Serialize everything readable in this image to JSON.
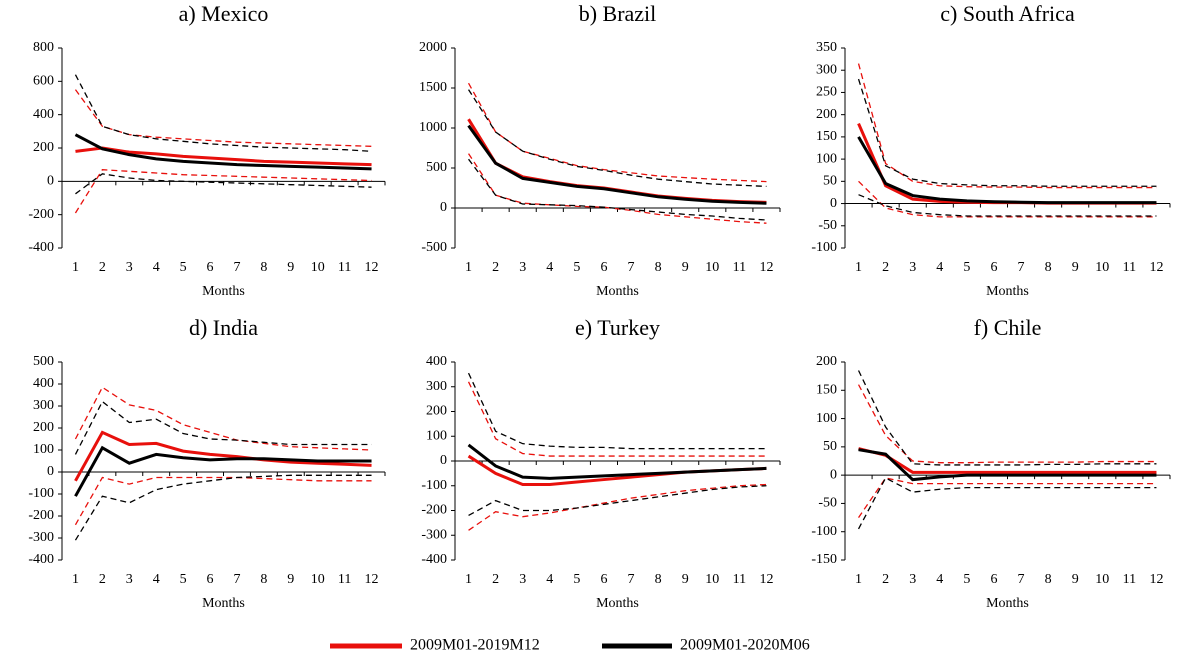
{
  "legend": [
    {
      "name": "2009M01-2019M12",
      "color": "#e8100c"
    },
    {
      "name": "2009M01-2020M06",
      "color": "#000000"
    }
  ],
  "chart_data": [
    {
      "type": "line",
      "title": "a) Mexico",
      "xlabel": "Months",
      "categories": [
        "1",
        "2",
        "3",
        "4",
        "5",
        "6",
        "7",
        "8",
        "9",
        "10",
        "11",
        "12"
      ],
      "ylim": [
        -400,
        800
      ],
      "yticks": [
        -400,
        -200,
        0,
        200,
        400,
        600,
        800
      ],
      "series": [
        {
          "values": [
            180,
            200,
            175,
            165,
            150,
            140,
            130,
            120,
            115,
            110,
            105,
            100
          ],
          "upper": [
            550,
            330,
            280,
            265,
            255,
            245,
            235,
            230,
            225,
            220,
            215,
            210
          ],
          "lower": [
            -190,
            70,
            60,
            50,
            40,
            35,
            30,
            25,
            20,
            15,
            10,
            5
          ]
        },
        {
          "values": [
            280,
            195,
            160,
            135,
            120,
            110,
            100,
            95,
            90,
            85,
            80,
            75
          ],
          "upper": [
            640,
            330,
            280,
            255,
            240,
            225,
            215,
            205,
            200,
            195,
            190,
            180
          ],
          "lower": [
            -75,
            45,
            20,
            5,
            0,
            -5,
            -10,
            -15,
            -20,
            -25,
            -30,
            -35
          ]
        }
      ]
    },
    {
      "type": "line",
      "title": "b) Brazil",
      "xlabel": "Months",
      "categories": [
        "1",
        "2",
        "3",
        "4",
        "5",
        "6",
        "7",
        "8",
        "9",
        "10",
        "11",
        "12"
      ],
      "ylim": [
        -500,
        2000
      ],
      "yticks": [
        -500,
        0,
        500,
        1000,
        1500,
        2000
      ],
      "series": [
        {
          "values": [
            1110,
            560,
            390,
            330,
            280,
            250,
            200,
            150,
            120,
            95,
            80,
            70
          ],
          "upper": [
            1560,
            950,
            710,
            620,
            530,
            480,
            440,
            400,
            380,
            360,
            345,
            330
          ],
          "lower": [
            680,
            160,
            60,
            40,
            20,
            10,
            -30,
            -80,
            -110,
            -140,
            -170,
            -190
          ]
        },
        {
          "values": [
            1030,
            560,
            370,
            320,
            270,
            240,
            190,
            140,
            110,
            85,
            70,
            60
          ],
          "upper": [
            1480,
            950,
            710,
            610,
            520,
            470,
            410,
            360,
            330,
            300,
            285,
            270
          ],
          "lower": [
            610,
            160,
            50,
            40,
            30,
            10,
            -20,
            -50,
            -80,
            -100,
            -130,
            -150
          ]
        }
      ]
    },
    {
      "type": "line",
      "title": "c) South Africa",
      "xlabel": "Months",
      "categories": [
        "1",
        "2",
        "3",
        "4",
        "5",
        "6",
        "7",
        "8",
        "9",
        "10",
        "11",
        "12"
      ],
      "ylim": [
        -100,
        350
      ],
      "yticks": [
        -100,
        -50,
        0,
        50,
        100,
        150,
        200,
        250,
        300,
        350
      ],
      "series": [
        {
          "values": [
            180,
            40,
            10,
            5,
            3,
            2,
            2,
            1,
            1,
            1,
            1,
            1
          ],
          "upper": [
            315,
            90,
            50,
            40,
            38,
            37,
            37,
            36,
            36,
            36,
            36,
            36
          ],
          "lower": [
            50,
            -10,
            -25,
            -30,
            -30,
            -30,
            -30,
            -30,
            -30,
            -30,
            -30,
            -30
          ]
        },
        {
          "values": [
            150,
            45,
            18,
            10,
            6,
            4,
            3,
            2,
            2,
            2,
            2,
            2
          ],
          "upper": [
            280,
            85,
            55,
            45,
            42,
            40,
            40,
            39,
            39,
            39,
            39,
            39
          ],
          "lower": [
            20,
            -5,
            -20,
            -25,
            -28,
            -28,
            -28,
            -28,
            -28,
            -28,
            -28,
            -28
          ]
        }
      ]
    },
    {
      "type": "line",
      "title": "d) India",
      "xlabel": "Months",
      "categories": [
        "1",
        "2",
        "3",
        "4",
        "5",
        "6",
        "7",
        "8",
        "9",
        "10",
        "11",
        "12"
      ],
      "ylim": [
        -400,
        500
      ],
      "yticks": [
        -400,
        -300,
        -200,
        -100,
        0,
        100,
        200,
        300,
        400,
        500
      ],
      "series": [
        {
          "values": [
            -40,
            180,
            125,
            130,
            95,
            80,
            70,
            55,
            45,
            40,
            35,
            30
          ],
          "upper": [
            150,
            385,
            305,
            280,
            215,
            180,
            145,
            130,
            115,
            110,
            105,
            100
          ],
          "lower": [
            -240,
            -25,
            -55,
            -25,
            -25,
            -25,
            -25,
            -30,
            -35,
            -40,
            -40,
            -40
          ]
        },
        {
          "values": [
            -110,
            110,
            40,
            80,
            65,
            55,
            60,
            60,
            55,
            50,
            50,
            50
          ],
          "upper": [
            80,
            320,
            225,
            240,
            175,
            150,
            145,
            135,
            125,
            125,
            125,
            125
          ],
          "lower": [
            -310,
            -110,
            -140,
            -80,
            -55,
            -40,
            -25,
            -20,
            -15,
            -15,
            -15,
            -15
          ]
        }
      ]
    },
    {
      "type": "line",
      "title": "e) Turkey",
      "xlabel": "Months",
      "categories": [
        "1",
        "2",
        "3",
        "4",
        "5",
        "6",
        "7",
        "8",
        "9",
        "10",
        "11",
        "12"
      ],
      "ylim": [
        -400,
        400
      ],
      "yticks": [
        -400,
        -300,
        -200,
        -100,
        0,
        100,
        200,
        300,
        400
      ],
      "series": [
        {
          "values": [
            20,
            -50,
            -95,
            -95,
            -85,
            -75,
            -65,
            -55,
            -45,
            -40,
            -35,
            -30
          ],
          "upper": [
            320,
            90,
            30,
            20,
            20,
            20,
            20,
            20,
            20,
            20,
            20,
            20
          ],
          "lower": [
            -280,
            -205,
            -225,
            -210,
            -190,
            -170,
            -150,
            -135,
            -120,
            -110,
            -100,
            -95
          ]
        },
        {
          "values": [
            65,
            -20,
            -65,
            -70,
            -65,
            -60,
            -55,
            -50,
            -45,
            -40,
            -35,
            -30
          ],
          "upper": [
            355,
            120,
            70,
            60,
            55,
            55,
            50,
            50,
            50,
            50,
            50,
            50
          ],
          "lower": [
            -220,
            -160,
            -200,
            -200,
            -190,
            -175,
            -160,
            -145,
            -130,
            -115,
            -105,
            -100
          ]
        }
      ]
    },
    {
      "type": "line",
      "title": "f) Chile",
      "xlabel": "Months",
      "categories": [
        "1",
        "2",
        "3",
        "4",
        "5",
        "6",
        "7",
        "8",
        "9",
        "10",
        "11",
        "12"
      ],
      "ylim": [
        -150,
        200
      ],
      "yticks": [
        -150,
        -100,
        -50,
        0,
        50,
        100,
        150,
        200
      ],
      "series": [
        {
          "values": [
            47,
            35,
            5,
            5,
            5,
            5,
            5,
            5,
            5,
            5,
            5,
            5
          ],
          "upper": [
            160,
            70,
            25,
            22,
            22,
            23,
            23,
            23,
            23,
            24,
            24,
            24
          ],
          "lower": [
            -75,
            -5,
            -15,
            -15,
            -15,
            -15,
            -15,
            -15,
            -15,
            -15,
            -15,
            -15
          ]
        },
        {
          "values": [
            45,
            37,
            -8,
            -3,
            0,
            0,
            0,
            0,
            0,
            0,
            0,
            0
          ],
          "upper": [
            185,
            85,
            20,
            18,
            18,
            18,
            18,
            19,
            19,
            20,
            20,
            20
          ],
          "lower": [
            -95,
            -5,
            -30,
            -25,
            -22,
            -22,
            -22,
            -22,
            -22,
            -22,
            -22,
            -22
          ]
        }
      ]
    }
  ]
}
